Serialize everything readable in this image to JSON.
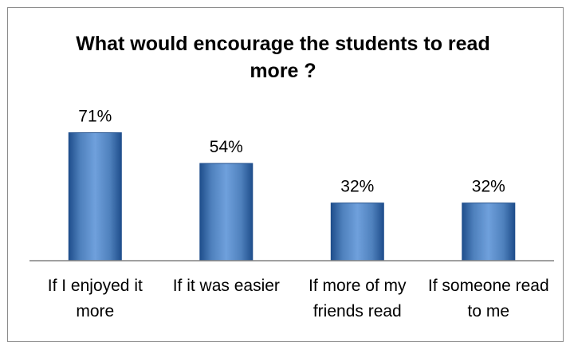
{
  "chart_data": {
    "type": "bar",
    "title": "What would encourage the students to read more ?",
    "categories": [
      "If I enjoyed it more",
      "If it was easier",
      "If more of my friends read",
      "If someone read to me"
    ],
    "values": [
      71,
      54,
      32,
      32
    ],
    "value_labels": [
      "71%",
      "54%",
      "32%",
      "32%"
    ],
    "unit": "%",
    "ylim": [
      0,
      100
    ],
    "grid": false,
    "legend": "none",
    "colors": {
      "bar": "#4f81bd",
      "bar_dark": "#1f4e8c",
      "bar_light": "#6fa0dc",
      "axis": "#808080"
    }
  }
}
